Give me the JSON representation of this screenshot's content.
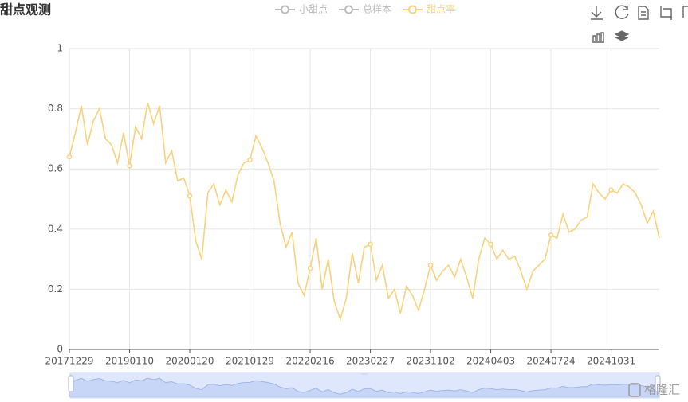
{
  "chart_data": {
    "type": "line",
    "title": "甜点观测",
    "legend": {
      "hidden": [
        "小甜点",
        "总样本"
      ],
      "hidden_color": "#bbbbbb"
    },
    "categories": [
      "20171229",
      null,
      null,
      null,
      null,
      null,
      null,
      null,
      null,
      null,
      "20190110",
      null,
      null,
      null,
      null,
      null,
      null,
      null,
      null,
      null,
      "20200120",
      null,
      null,
      null,
      null,
      null,
      null,
      null,
      null,
      null,
      "20210129",
      null,
      null,
      null,
      null,
      null,
      null,
      null,
      null,
      null,
      "20220216",
      null,
      null,
      null,
      null,
      null,
      null,
      null,
      null,
      null,
      "20230227",
      null,
      null,
      null,
      null,
      null,
      null,
      null,
      null,
      null,
      "20231102",
      null,
      null,
      null,
      null,
      null,
      null,
      null,
      null,
      null,
      "20240403",
      null,
      null,
      null,
      null,
      null,
      null,
      null,
      null,
      null,
      "20240724",
      null,
      null,
      null,
      null,
      null,
      null,
      null,
      null,
      null,
      "20241031",
      null,
      null,
      null,
      null,
      null,
      null,
      null,
      null
    ],
    "series": [
      {
        "name": "甜点率",
        "color": "#f8d27c",
        "values": [
          0.64,
          0.72,
          0.81,
          0.68,
          0.76,
          0.8,
          0.7,
          0.68,
          0.62,
          0.72,
          0.61,
          0.74,
          0.7,
          0.82,
          0.75,
          0.81,
          0.62,
          0.66,
          0.56,
          0.57,
          0.51,
          0.36,
          0.3,
          0.52,
          0.55,
          0.48,
          0.53,
          0.49,
          0.58,
          0.62,
          0.63,
          0.71,
          0.67,
          0.62,
          0.56,
          0.42,
          0.34,
          0.39,
          0.22,
          0.18,
          0.27,
          0.37,
          0.2,
          0.3,
          0.16,
          0.1,
          0.17,
          0.32,
          0.22,
          0.34,
          0.35,
          0.23,
          0.28,
          0.17,
          0.2,
          0.12,
          0.21,
          0.18,
          0.13,
          0.2,
          0.28,
          0.23,
          0.26,
          0.28,
          0.24,
          0.3,
          0.24,
          0.17,
          0.3,
          0.37,
          0.35,
          0.3,
          0.33,
          0.3,
          0.31,
          0.26,
          0.2,
          0.26,
          0.28,
          0.3,
          0.38,
          0.37,
          0.45,
          0.39,
          0.4,
          0.43,
          0.44,
          0.55,
          0.52,
          0.5,
          0.53,
          0.52,
          0.55,
          0.54,
          0.52,
          0.48,
          0.42,
          0.46,
          0.37
        ]
      }
    ],
    "ylim": [
      0,
      1
    ],
    "yticks": [
      0,
      0.2,
      0.4,
      0.6,
      0.8,
      1
    ],
    "grid": true,
    "watermark": "格隆汇"
  }
}
